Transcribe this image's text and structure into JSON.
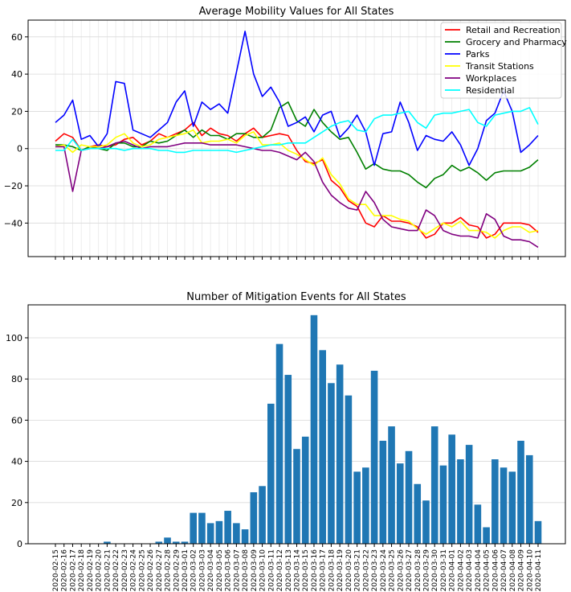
{
  "colors": {
    "retail": "#ff0000",
    "grocery": "#008000",
    "parks": "#0000ff",
    "transit": "#ffff00",
    "workplaces": "#800080",
    "residential": "#00ffff",
    "bar": "#1f77b4"
  },
  "chart_data": [
    {
      "type": "line",
      "title": "Average Mobility Values for All States",
      "xlabel": "",
      "ylabel": "",
      "ylim": [
        -58,
        69
      ],
      "yticks": [
        -40,
        -20,
        0,
        20,
        40,
        60
      ],
      "grid": true,
      "legend_position": "top-right",
      "x": [
        "2020-02-15",
        "2020-02-16",
        "2020-02-17",
        "2020-02-18",
        "2020-02-19",
        "2020-02-20",
        "2020-02-21",
        "2020-02-22",
        "2020-02-23",
        "2020-02-24",
        "2020-02-25",
        "2020-02-26",
        "2020-02-27",
        "2020-02-28",
        "2020-02-29",
        "2020-03-01",
        "2020-03-02",
        "2020-03-03",
        "2020-03-04",
        "2020-03-05",
        "2020-03-06",
        "2020-03-07",
        "2020-03-08",
        "2020-03-09",
        "2020-03-10",
        "2020-03-11",
        "2020-03-12",
        "2020-03-13",
        "2020-03-14",
        "2020-03-15",
        "2020-03-16",
        "2020-03-17",
        "2020-03-18",
        "2020-03-19",
        "2020-03-20",
        "2020-03-21",
        "2020-03-22",
        "2020-03-23",
        "2020-03-24",
        "2020-03-25",
        "2020-03-26",
        "2020-03-27",
        "2020-03-28",
        "2020-03-29",
        "2020-03-30",
        "2020-03-31",
        "2020-04-01",
        "2020-04-02",
        "2020-04-03",
        "2020-04-04",
        "2020-04-05",
        "2020-04-06",
        "2020-04-07",
        "2020-04-08",
        "2020-04-09",
        "2020-04-10",
        "2020-04-11"
      ],
      "series": [
        {
          "name": "Retail and Recreation",
          "color_key": "retail",
          "values": [
            4,
            8,
            6,
            -1,
            1,
            2,
            1,
            2,
            5,
            6,
            2,
            4,
            8,
            6,
            8,
            10,
            14,
            7,
            11,
            8,
            7,
            4,
            8,
            11,
            6,
            7,
            8,
            7,
            -1,
            -7,
            -8,
            -6,
            -17,
            -21,
            -28,
            -31,
            -40,
            -42,
            -36,
            -39,
            -39,
            -40,
            -42,
            -48,
            -46,
            -40,
            -40,
            -37,
            -41,
            -42,
            -48,
            -46,
            -40,
            -40,
            -40,
            -41,
            -45
          ]
        },
        {
          "name": "Grocery and Pharmacy",
          "color_key": "grocery",
          "values": [
            2,
            2,
            1,
            -1,
            1,
            0,
            -1,
            3,
            3,
            1,
            1,
            4,
            3,
            4,
            7,
            10,
            6,
            10,
            7,
            7,
            5,
            8,
            8,
            6,
            6,
            10,
            22,
            25,
            15,
            12,
            21,
            14,
            9,
            5,
            6,
            -2,
            -11,
            -8,
            -11,
            -12,
            -12,
            -14,
            -18,
            -21,
            -16,
            -14,
            -9,
            -12,
            -10,
            -13,
            -17,
            -13,
            -12,
            -12,
            -12,
            -10,
            -6
          ]
        },
        {
          "name": "Parks",
          "color_key": "parks",
          "values": [
            14,
            18,
            26,
            5,
            7,
            1,
            8,
            36,
            35,
            10,
            8,
            6,
            10,
            14,
            25,
            31,
            12,
            25,
            21,
            24,
            19,
            41,
            63,
            40,
            28,
            33,
            25,
            12,
            14,
            17,
            9,
            18,
            20,
            6,
            11,
            18,
            9,
            -9,
            8,
            9,
            25,
            14,
            -1,
            7,
            5,
            4,
            9,
            2,
            -9,
            0,
            15,
            19,
            31,
            20,
            -2,
            2,
            7
          ]
        },
        {
          "name": "Transit Stations",
          "color_key": "transit",
          "values": [
            1,
            2,
            -2,
            2,
            1,
            1,
            2,
            6,
            8,
            3,
            1,
            2,
            5,
            6,
            7,
            8,
            10,
            3,
            4,
            4,
            5,
            3,
            7,
            9,
            2,
            2,
            3,
            -1,
            -3,
            -6,
            -9,
            -5,
            -14,
            -19,
            -27,
            -30,
            -30,
            -36,
            -36,
            -36,
            -38,
            -39,
            -43,
            -46,
            -43,
            -40,
            -42,
            -39,
            -44,
            -44,
            -45,
            -48,
            -44,
            -42,
            -42,
            -45,
            -44
          ]
        },
        {
          "name": "Workplaces",
          "color_key": "workplaces",
          "values": [
            1,
            1,
            -23,
            -1,
            0,
            0,
            1,
            3,
            4,
            2,
            0,
            1,
            1,
            1,
            2,
            3,
            3,
            3,
            2,
            2,
            2,
            2,
            1,
            0,
            -1,
            -1,
            -2,
            -4,
            -6,
            -2,
            -7,
            -18,
            -25,
            -29,
            -32,
            -33,
            -23,
            -29,
            -38,
            -42,
            -43,
            -44,
            -44,
            -33,
            -36,
            -44,
            -46,
            -47,
            -47,
            -48,
            -35,
            -38,
            -47,
            -49,
            -49,
            -50,
            -53
          ]
        },
        {
          "name": "Residential",
          "color_key": "residential",
          "values": [
            -1,
            -1,
            5,
            -1,
            0,
            0,
            0,
            0,
            -1,
            0,
            0,
            0,
            -1,
            -1,
            -2,
            -2,
            -1,
            -1,
            -1,
            -1,
            -1,
            -2,
            -1,
            0,
            1,
            2,
            2,
            3,
            3,
            3,
            6,
            9,
            12,
            14,
            15,
            10,
            9,
            16,
            18,
            18,
            19,
            20,
            14,
            11,
            18,
            19,
            19,
            20,
            21,
            14,
            12,
            18,
            19,
            20,
            20,
            22,
            13
          ]
        }
      ]
    },
    {
      "type": "bar",
      "title": "Number of Mitigation Events for All States",
      "xlabel": "",
      "ylabel": "",
      "ylim": [
        0,
        116
      ],
      "yticks": [
        0,
        20,
        40,
        60,
        80,
        100
      ],
      "grid": true,
      "categories": [
        "2020-02-15",
        "2020-02-16",
        "2020-02-17",
        "2020-02-18",
        "2020-02-19",
        "2020-02-20",
        "2020-02-21",
        "2020-02-22",
        "2020-02-23",
        "2020-02-24",
        "2020-02-25",
        "2020-02-26",
        "2020-02-27",
        "2020-02-28",
        "2020-02-29",
        "2020-03-01",
        "2020-03-02",
        "2020-03-03",
        "2020-03-04",
        "2020-03-05",
        "2020-03-06",
        "2020-03-07",
        "2020-03-08",
        "2020-03-09",
        "2020-03-10",
        "2020-03-11",
        "2020-03-12",
        "2020-03-13",
        "2020-03-14",
        "2020-03-15",
        "2020-03-16",
        "2020-03-17",
        "2020-03-18",
        "2020-03-19",
        "2020-03-20",
        "2020-03-21",
        "2020-03-22",
        "2020-03-23",
        "2020-03-24",
        "2020-03-25",
        "2020-03-26",
        "2020-03-27",
        "2020-03-28",
        "2020-03-29",
        "2020-03-30",
        "2020-03-31",
        "2020-04-01",
        "2020-04-02",
        "2020-04-03",
        "2020-04-04",
        "2020-04-05",
        "2020-04-06",
        "2020-04-07",
        "2020-04-08",
        "2020-04-09",
        "2020-04-10",
        "2020-04-11"
      ],
      "values": [
        0,
        0,
        0,
        0,
        0,
        0,
        1,
        0,
        0,
        0,
        0,
        0,
        1,
        3,
        1,
        1,
        15,
        15,
        10,
        11,
        16,
        10,
        7,
        25,
        28,
        68,
        97,
        82,
        46,
        52,
        111,
        94,
        78,
        87,
        72,
        35,
        37,
        84,
        50,
        57,
        39,
        45,
        29,
        21,
        57,
        38,
        53,
        41,
        48,
        19,
        8,
        41,
        37,
        35,
        50,
        43,
        11
      ]
    }
  ]
}
